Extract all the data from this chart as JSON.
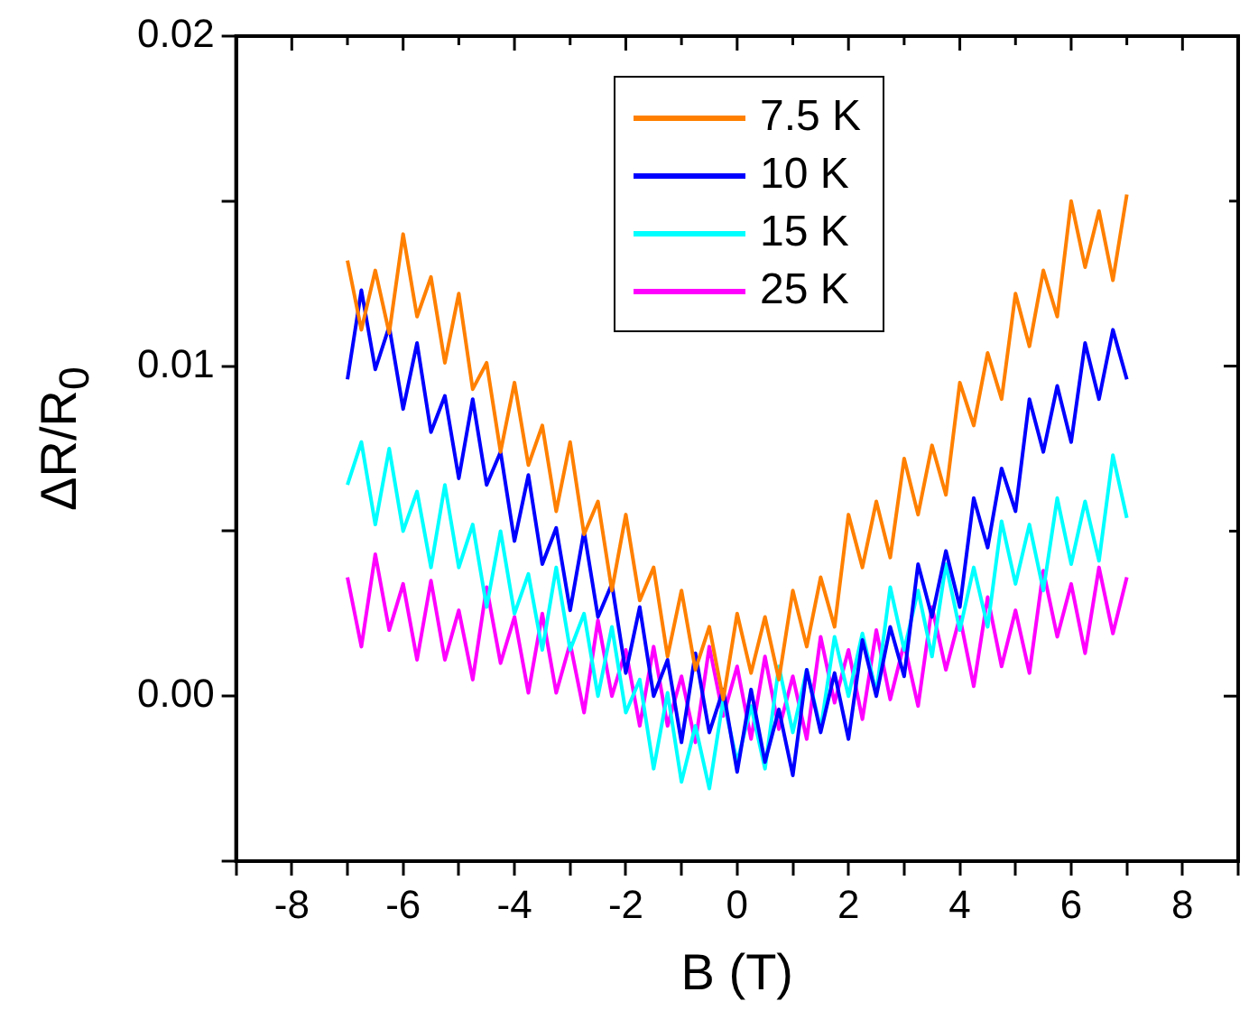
{
  "chart_data": {
    "type": "line",
    "xlabel": "B (T)",
    "ylabel": "ΔR/R$_{0}$",
    "legend": "top",
    "grid": false,
    "marker": "none",
    "line_style": "solid",
    "xlim": [
      -9,
      9
    ],
    "ylim": [
      -0.005,
      0.02
    ],
    "xticks": [
      {
        "value": -9,
        "label": null
      },
      -8,
      {
        "value": -7,
        "label": null
      },
      -6,
      {
        "value": -5,
        "label": null
      },
      -4,
      {
        "value": -3,
        "label": null
      },
      -2,
      {
        "value": -1,
        "label": null
      },
      0,
      {
        "value": 1,
        "label": null
      },
      2,
      {
        "value": 3,
        "label": null
      },
      4,
      {
        "value": 5,
        "label": null
      },
      6,
      {
        "value": 7,
        "label": null
      },
      8,
      {
        "value": 9,
        "label": null
      }
    ],
    "yticks": [
      {
        "value": -0.005,
        "label": null
      },
      {
        "value": 0,
        "label": "0.00"
      },
      {
        "value": 0.005,
        "label": null
      },
      {
        "value": 0.01,
        "label": "0.01"
      },
      {
        "value": 0.015,
        "label": null
      },
      {
        "value": 0.02,
        "label": "0.02"
      }
    ],
    "x": [
      -7,
      -6.75,
      -6.5,
      -6.25,
      -6,
      -5.75,
      -5.5,
      -5.25,
      -5,
      -4.75,
      -4.5,
      -4.25,
      -4,
      -3.75,
      -3.5,
      -3.25,
      -3,
      -2.75,
      -2.5,
      -2.25,
      -2,
      -1.75,
      -1.5,
      -1.25,
      -1,
      -0.75,
      -0.5,
      -0.25,
      0,
      0.25,
      0.5,
      0.75,
      1,
      1.25,
      1.5,
      1.75,
      2,
      2.25,
      2.5,
      2.75,
      3,
      3.25,
      3.5,
      3.75,
      4,
      4.25,
      4.5,
      4.75,
      5,
      5.25,
      5.5,
      5.75,
      6,
      6.25,
      6.5,
      6.75,
      7
    ],
    "series": [
      {
        "name": "7.5 K",
        "color": "#ff8000",
        "values": [
          0.0132,
          0.0111,
          0.0129,
          0.011,
          0.014,
          0.0115,
          0.0127,
          0.0101,
          0.0122,
          0.0093,
          0.0101,
          0.0074,
          0.0095,
          0.007,
          0.0082,
          0.0056,
          0.0077,
          0.0049,
          0.0059,
          0.0032,
          0.0055,
          0.0029,
          0.0039,
          0.0012,
          0.0032,
          0.0008,
          0.0021,
          -0.0001,
          0.0025,
          0.0007,
          0.0024,
          0.0005,
          0.0032,
          0.0015,
          0.0036,
          0.0021,
          0.0055,
          0.0039,
          0.0059,
          0.0042,
          0.0072,
          0.0055,
          0.0076,
          0.0061,
          0.0095,
          0.0082,
          0.0104,
          0.009,
          0.0122,
          0.0106,
          0.0129,
          0.0115,
          0.015,
          0.013,
          0.0147,
          0.0126,
          0.0152
        ]
      },
      {
        "name": "10 K",
        "color": "#0000ff",
        "values": [
          0.0096,
          0.0123,
          0.0099,
          0.0112,
          0.0087,
          0.0107,
          0.008,
          0.0091,
          0.0066,
          0.009,
          0.0064,
          0.0074,
          0.0047,
          0.0067,
          0.004,
          0.0051,
          0.0026,
          0.005,
          0.0024,
          0.0034,
          0.0007,
          0.0027,
          0,
          0.0011,
          -0.0014,
          0.0013,
          -0.0011,
          0.0002,
          -0.0023,
          0.0002,
          -0.002,
          -0.0004,
          -0.0024,
          0.0008,
          -0.0011,
          0.0007,
          -0.0013,
          0.0017,
          0,
          0.0021,
          0.0006,
          0.004,
          0.0024,
          0.0044,
          0.0027,
          0.006,
          0.0045,
          0.0069,
          0.0056,
          0.009,
          0.0074,
          0.0094,
          0.0077,
          0.0107,
          0.009,
          0.0111,
          0.0096
        ]
      },
      {
        "name": "15 K",
        "color": "#00ffff",
        "values": [
          0.0064,
          0.0077,
          0.0052,
          0.0075,
          0.005,
          0.0062,
          0.0039,
          0.0064,
          0.0039,
          0.0052,
          0.0027,
          0.005,
          0.0025,
          0.0037,
          0.0014,
          0.0039,
          0.0014,
          0.0025,
          0,
          0.0021,
          -0.0005,
          0.0005,
          -0.0022,
          0.0001,
          -0.0026,
          -0.0009,
          -0.0028,
          -0.0001,
          -0.002,
          -0.0003,
          -0.0022,
          0.0009,
          -0.0011,
          0.0008,
          -0.001,
          0.0018,
          0,
          0.0019,
          0.0001,
          0.0033,
          0.0014,
          0.0032,
          0.0012,
          0.004,
          0.002,
          0.0039,
          0.0021,
          0.0053,
          0.0034,
          0.0052,
          0.0032,
          0.006,
          0.004,
          0.0059,
          0.0041,
          0.0073,
          0.0054
        ]
      },
      {
        "name": "25 K",
        "color": "#ff00ff",
        "values": [
          0.0036,
          0.0015,
          0.0043,
          0.002,
          0.0034,
          0.0011,
          0.0035,
          0.0011,
          0.0026,
          0.0005,
          0.0033,
          0.001,
          0.0024,
          0.0001,
          0.0025,
          0.0001,
          0.0016,
          -0.0005,
          0.0023,
          0,
          0.0014,
          -0.0009,
          0.0015,
          -0.0009,
          0.0006,
          -0.0014,
          0.0015,
          -0.0006,
          0.0009,
          -0.0013,
          0.0012,
          -0.001,
          0.0006,
          -0.0013,
          0.0018,
          -0.0002,
          0.0014,
          -0.0007,
          0.002,
          -0.0001,
          0.0016,
          -0.0003,
          0.0027,
          0.0008,
          0.0024,
          0.0003,
          0.003,
          0.0009,
          0.0026,
          0.0007,
          0.0038,
          0.0018,
          0.0034,
          0.0013,
          0.0039,
          0.0019,
          0.0036
        ]
      }
    ]
  }
}
